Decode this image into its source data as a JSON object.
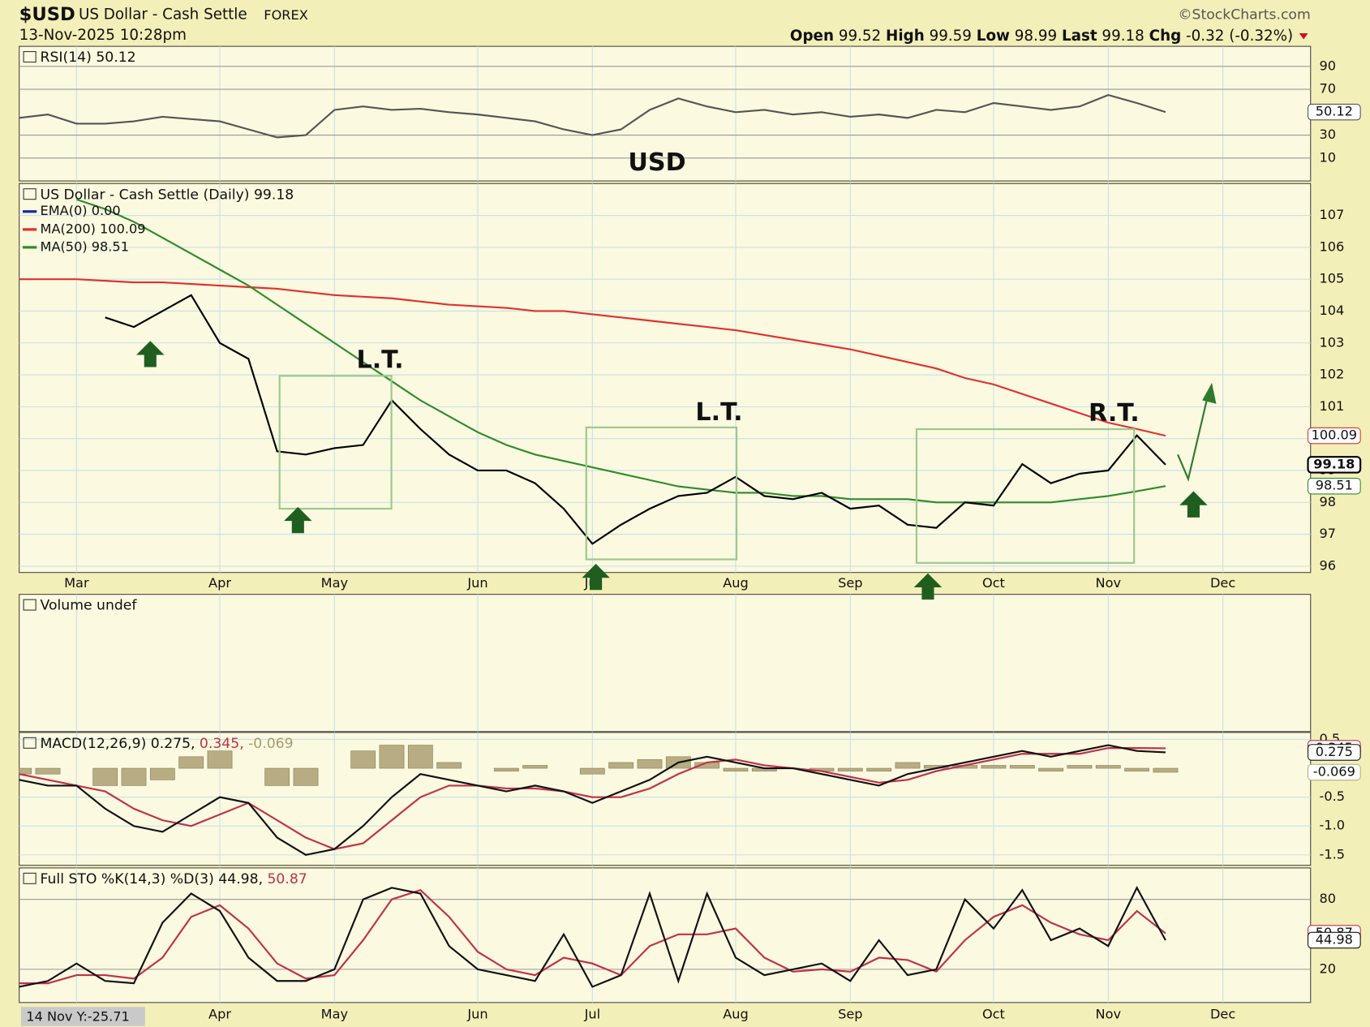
{
  "header": {
    "symbol": "$USD",
    "name": "US Dollar - Cash Settle",
    "exchange": "FOREX",
    "source": "©StockCharts.com",
    "date": "13-Nov-2025 10:28pm",
    "quote": [
      {
        "label": "Open",
        "value": 99.52
      },
      {
        "label": "High",
        "value": 99.59
      },
      {
        "label": "Low",
        "value": 98.99
      },
      {
        "label": "Last",
        "value": 99.18
      }
    ],
    "chg": {
      "label": "Chg",
      "value": -0.32,
      "pct": "(-0.32%)"
    }
  },
  "footer": "14 Nov Y:-25.71",
  "chart_data": [
    {
      "type": "line",
      "title": "RSI(14) 50.12",
      "ylim": [
        -10,
        107.5
      ],
      "yticks": [
        10,
        30,
        70,
        90
      ],
      "grid": true,
      "annotations": [
        {
          "text": "USD",
          "color": "#3d7a2c"
        }
      ],
      "series": [
        {
          "name": "RSI(14)",
          "color": "#555555",
          "values": [
            45,
            48,
            40,
            40,
            42,
            46,
            44,
            42,
            35,
            28,
            30,
            52,
            55,
            52,
            53,
            50,
            48,
            45,
            42,
            35,
            30,
            35,
            52,
            62,
            55,
            50,
            52,
            48,
            50,
            46,
            48,
            45,
            52,
            50,
            58,
            55,
            52,
            55,
            65,
            58,
            50.12,
            null,
            null
          ]
        }
      ]
    },
    {
      "type": "line",
      "title": "US Dollar - Cash Settle (Daily) 99.18",
      "ylim": [
        95.8,
        108
      ],
      "yticks": [
        96,
        97,
        98,
        99,
        100,
        101,
        102,
        103,
        104,
        105,
        106,
        107
      ],
      "grid": true,
      "categories": [
        null,
        null,
        "Mar",
        null,
        null,
        null,
        null,
        "Apr",
        null,
        null,
        null,
        "May",
        null,
        null,
        null,
        null,
        "Jun",
        null,
        null,
        null,
        "Jul",
        null,
        null,
        null,
        null,
        "Aug",
        null,
        null,
        null,
        "Sep",
        null,
        null,
        null,
        null,
        "Oct",
        null,
        null,
        null,
        "Nov",
        null,
        null,
        null,
        "Dec"
      ],
      "values": [
        null,
        null,
        null,
        103.8,
        103.5,
        104,
        104.5,
        103,
        102.5,
        99.6,
        99.5,
        99.7,
        99.8,
        101.2,
        100.3,
        99.5,
        99,
        99,
        98.6,
        97.8,
        96.7,
        97.3,
        97.8,
        98.2,
        98.3,
        98.8,
        98.2,
        98.1,
        98.3,
        97.8,
        97.9,
        97.3,
        97.2,
        98,
        97.9,
        99.2,
        98.6,
        98.9,
        99,
        100.1,
        99.18,
        null,
        null
      ],
      "color": "#000000",
      "annotations": [
        {
          "text": "L.T.",
          "color": "#e02020"
        },
        {
          "text": "L.T.",
          "color": "#e02020"
        },
        {
          "text": "R.T.",
          "color": "#4d8a40"
        }
      ],
      "series": [
        {
          "name": "EMA(0) 0.00",
          "color": "#1a2aa0"
        },
        {
          "name": "MA(200) 100.09",
          "color": "#e03030",
          "values": [
            105,
            105,
            105,
            104.95,
            104.9,
            104.9,
            104.85,
            104.8,
            104.75,
            104.7,
            104.6,
            104.5,
            104.45,
            104.4,
            104.3,
            104.2,
            104.15,
            104.1,
            104,
            104,
            103.9,
            103.8,
            103.7,
            103.6,
            103.5,
            103.4,
            103.25,
            103.1,
            102.95,
            102.8,
            102.6,
            102.4,
            102.2,
            101.9,
            101.7,
            101.4,
            101.1,
            100.8,
            100.5,
            100.3,
            100.09,
            null,
            null
          ]
        },
        {
          "name": "MA(50) 98.51",
          "color": "#2f8a2f",
          "values": [
            null,
            null,
            107.5,
            107.2,
            106.8,
            106.3,
            105.8,
            105.3,
            104.8,
            104.2,
            103.6,
            103,
            102.4,
            101.8,
            101.2,
            100.7,
            100.2,
            99.8,
            99.5,
            99.3,
            99.1,
            98.9,
            98.7,
            98.5,
            98.4,
            98.3,
            98.3,
            98.2,
            98.2,
            98.1,
            98.1,
            98.1,
            98.0,
            98.0,
            98.0,
            98.0,
            98.0,
            98.1,
            98.2,
            98.35,
            98.51,
            null,
            null
          ]
        }
      ]
    },
    {
      "type": "bar",
      "title": "Volume undef"
    },
    {
      "type": "line",
      "title_parts": [
        {
          "text": "MACD(12,26,9) 0.275,",
          "color": "#111111"
        },
        {
          "text": "0.345,",
          "color": "#c0304a"
        },
        {
          "text": "-0.069",
          "color": "#a89c70"
        }
      ],
      "ylim": [
        -1.68,
        0.62
      ],
      "yticks": [
        0.5,
        -0.5,
        {
          "value": -1,
          "label": "-1.0"
        },
        -1.5
      ],
      "grid": true,
      "series": [
        {
          "name": "Histogram",
          "type": "bar",
          "color": "#b8ad82",
          "values": [
            -0.1,
            -0.1,
            0,
            -0.3,
            -0.3,
            -0.2,
            0.2,
            0.3,
            0,
            -0.3,
            -0.3,
            0,
            0.3,
            0.4,
            0.4,
            0.1,
            0,
            -0.05,
            0.05,
            0,
            -0.1,
            0.1,
            0.15,
            0.2,
            0.1,
            -0.05,
            -0.05,
            0,
            -0.05,
            -0.05,
            -0.05,
            0.1,
            0.05,
            0.05,
            0.05,
            0.05,
            -0.05,
            0.05,
            0.05,
            -0.05,
            -0.069,
            null,
            null
          ]
        },
        {
          "name": "Signal",
          "color": "#c0304a",
          "values": [
            -0.1,
            -0.2,
            -0.3,
            -0.4,
            -0.7,
            -0.9,
            -1.0,
            -0.8,
            -0.6,
            -0.9,
            -1.2,
            -1.4,
            -1.3,
            -0.9,
            -0.5,
            -0.3,
            -0.3,
            -0.35,
            -0.35,
            -0.4,
            -0.5,
            -0.5,
            -0.35,
            -0.1,
            0.1,
            0.15,
            0.05,
            0.0,
            -0.05,
            -0.15,
            -0.25,
            -0.2,
            -0.05,
            0.05,
            0.15,
            0.25,
            0.25,
            0.25,
            0.35,
            0.35,
            0.345,
            null,
            null
          ]
        },
        {
          "name": "MACD",
          "color": "#111111",
          "values": [
            -0.2,
            -0.3,
            -0.3,
            -0.7,
            -1.0,
            -1.1,
            -0.8,
            -0.5,
            -0.6,
            -1.2,
            -1.5,
            -1.4,
            -1.0,
            -0.5,
            -0.1,
            -0.2,
            -0.3,
            -0.4,
            -0.3,
            -0.4,
            -0.6,
            -0.4,
            -0.2,
            0.1,
            0.2,
            0.1,
            0.0,
            0.0,
            -0.1,
            -0.2,
            -0.3,
            -0.1,
            0.0,
            0.1,
            0.2,
            0.3,
            0.2,
            0.3,
            0.4,
            0.3,
            0.275,
            null,
            null
          ]
        }
      ]
    },
    {
      "type": "line",
      "title_parts": [
        {
          "text": "Full STO %K(14,3) %D(3) 44.98,",
          "color": "#111111"
        },
        {
          "text": "50.87",
          "color": "#c0304a"
        }
      ],
      "ylim": [
        -8.5,
        107
      ],
      "yticks": [
        20,
        80
      ],
      "grid": true,
      "series": [
        {
          "name": "%D(3)",
          "color": "#c0304a",
          "values": [
            8,
            8,
            15,
            15,
            12,
            30,
            65,
            75,
            55,
            25,
            12,
            15,
            45,
            80,
            88,
            65,
            35,
            20,
            15,
            30,
            25,
            15,
            40,
            50,
            50,
            55,
            30,
            18,
            20,
            18,
            30,
            28,
            18,
            45,
            65,
            75,
            60,
            50,
            45,
            70,
            50.87,
            null,
            null
          ]
        },
        {
          "name": "%K(14,3)",
          "color": "#111111",
          "values": [
            5,
            10,
            25,
            10,
            8,
            60,
            85,
            70,
            30,
            10,
            10,
            20,
            80,
            90,
            85,
            40,
            20,
            15,
            10,
            50,
            5,
            15,
            85,
            10,
            85,
            30,
            15,
            20,
            25,
            10,
            45,
            15,
            20,
            80,
            55,
            88,
            45,
            55,
            40,
            90,
            44.98,
            null,
            null
          ]
        }
      ]
    }
  ]
}
